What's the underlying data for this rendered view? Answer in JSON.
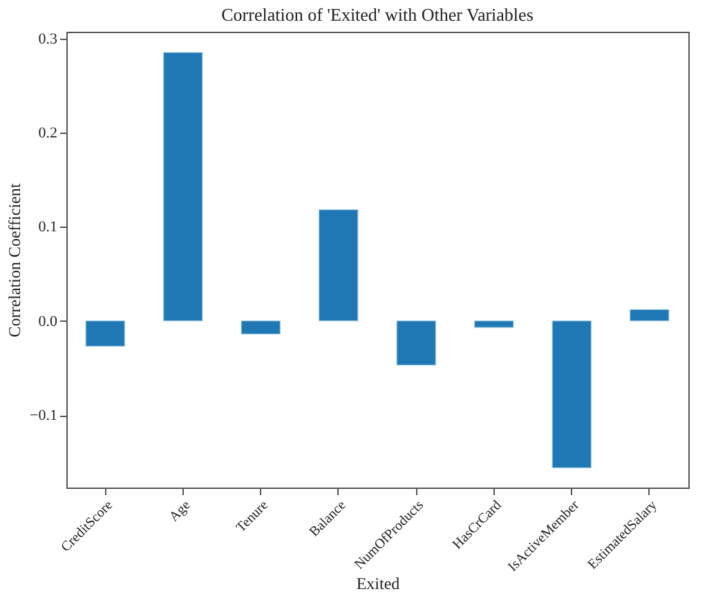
{
  "chart_data": {
    "type": "bar",
    "title": "Correlation of 'Exited' with Other Variables",
    "xlabel": "Exited",
    "ylabel": "Correlation Coefficient",
    "categories": [
      "CreditScore",
      "Age",
      "Tenure",
      "Balance",
      "NumOfProducts",
      "HasCrCard",
      "IsActiveMember",
      "EstimatedSalary"
    ],
    "values": [
      -0.027,
      0.285,
      -0.014,
      0.118,
      -0.047,
      -0.007,
      -0.156,
      0.012
    ],
    "color": "#1f77b4",
    "ylim": [
      -0.177,
      0.307
    ],
    "yticks": [
      {
        "value": -0.1,
        "label": "−0.1"
      },
      {
        "value": 0,
        "label": "0.0"
      },
      0.1,
      0.2,
      0.3
    ],
    "grid": false
  }
}
